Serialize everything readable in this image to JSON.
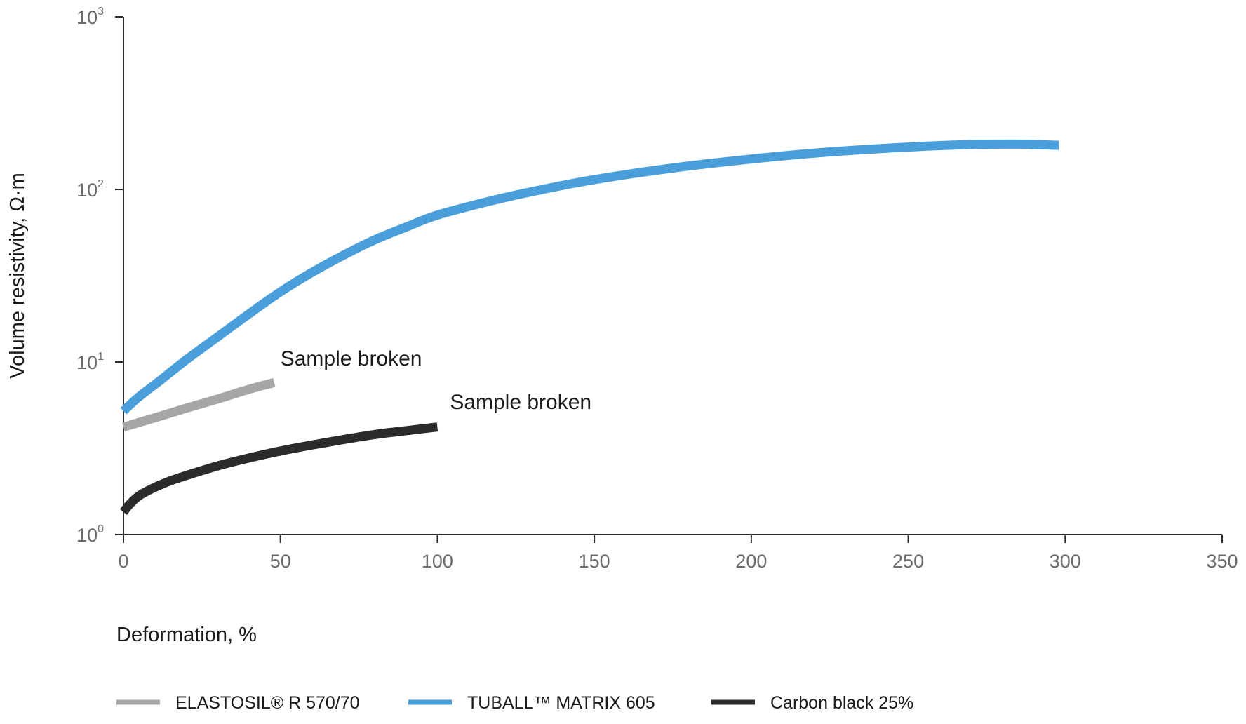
{
  "chart_data": {
    "type": "line",
    "xlabel": "Deformation, %",
    "ylabel": "Volume resistivity, Ω·m",
    "xlim": [
      0,
      350
    ],
    "ylim": [
      1,
      1000
    ],
    "yscale": "log",
    "xticks": [
      "0",
      "50",
      "100",
      "150",
      "200",
      "250",
      "300",
      "350"
    ],
    "yticks": [
      {
        "base": "10",
        "exp": "0"
      },
      {
        "base": "10",
        "exp": "1"
      },
      {
        "base": "10",
        "exp": "2"
      },
      {
        "base": "10",
        "exp": "3"
      }
    ],
    "grid": false,
    "legend_position": "bottom",
    "series": [
      {
        "name": "ELASTOSIL® R 570/70",
        "color": "#a6a6a6",
        "x": [
          0,
          10,
          20,
          30,
          40,
          48
        ],
        "y": [
          4.2,
          4.75,
          5.4,
          6.1,
          6.95,
          7.6
        ]
      },
      {
        "name": "TUBALL™  MATRIX 605",
        "color": "#4a9fdb",
        "x": [
          0,
          5,
          12,
          20,
          30,
          40,
          50,
          60,
          70,
          80,
          90,
          100,
          115,
          130,
          150,
          175,
          200,
          225,
          250,
          270,
          285,
          298
        ],
        "y": [
          5.2,
          6.3,
          7.9,
          10.3,
          14,
          19,
          25.5,
          33,
          41.5,
          51,
          60.5,
          71,
          84,
          97,
          114,
          133,
          150,
          165,
          176,
          182,
          183,
          180
        ]
      },
      {
        "name": "Carbon black 25%",
        "color": "#2b2b2b",
        "x": [
          0,
          2,
          5,
          10,
          15,
          20,
          30,
          40,
          50,
          60,
          70,
          80,
          90,
          100
        ],
        "y": [
          1.35,
          1.5,
          1.68,
          1.88,
          2.05,
          2.2,
          2.5,
          2.78,
          3.05,
          3.3,
          3.55,
          3.8,
          4.0,
          4.2
        ]
      }
    ],
    "annotations": [
      {
        "text": "Sample broken",
        "x": 50,
        "y": 10
      },
      {
        "text": "Sample broken",
        "x": 104,
        "y": 5.6
      }
    ]
  }
}
